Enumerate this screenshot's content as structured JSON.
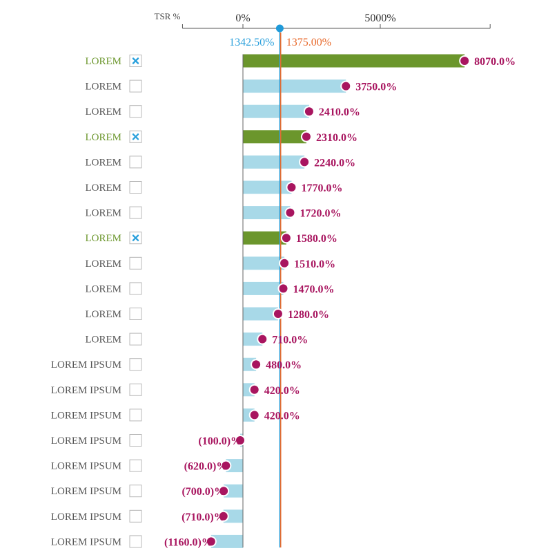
{
  "chart_data": {
    "type": "bar",
    "axis_label": "TSR %",
    "ticks": [
      {
        "value": 0,
        "label": "0%"
      },
      {
        "value": 5000,
        "label": "5000%"
      }
    ],
    "xlim": [
      -2200,
      9000
    ],
    "reference_lines": [
      {
        "value": 1342.5,
        "label": "1342.50%",
        "color": "#2aa0dc"
      },
      {
        "value": 1375.0,
        "label": "1375.00%",
        "color": "#e86a2c"
      }
    ],
    "rows": [
      {
        "label": "LOREM",
        "value": 8070.0,
        "value_label": "8070.0%",
        "checked": true
      },
      {
        "label": "LOREM",
        "value": 3750.0,
        "value_label": "3750.0%",
        "checked": false
      },
      {
        "label": "LOREM",
        "value": 2410.0,
        "value_label": "2410.0%",
        "checked": false
      },
      {
        "label": "LOREM",
        "value": 2310.0,
        "value_label": "2310.0%",
        "checked": true
      },
      {
        "label": "LOREM",
        "value": 2240.0,
        "value_label": "2240.0%",
        "checked": false
      },
      {
        "label": "LOREM",
        "value": 1770.0,
        "value_label": "1770.0%",
        "checked": false
      },
      {
        "label": "LOREM",
        "value": 1720.0,
        "value_label": "1720.0%",
        "checked": false
      },
      {
        "label": "LOREM",
        "value": 1580.0,
        "value_label": "1580.0%",
        "checked": true
      },
      {
        "label": "LOREM",
        "value": 1510.0,
        "value_label": "1510.0%",
        "checked": false
      },
      {
        "label": "LOREM",
        "value": 1470.0,
        "value_label": "1470.0%",
        "checked": false
      },
      {
        "label": "LOREM",
        "value": 1280.0,
        "value_label": "1280.0%",
        "checked": false
      },
      {
        "label": "LOREM",
        "value": 710.0,
        "value_label": "710.0%",
        "checked": false
      },
      {
        "label": "LOREM IPSUM",
        "value": 480.0,
        "value_label": "480.0%",
        "checked": false
      },
      {
        "label": "LOREM IPSUM",
        "value": 420.0,
        "value_label": "420.0%",
        "checked": false
      },
      {
        "label": "LOREM IPSUM",
        "value": 420.0,
        "value_label": "420.0%",
        "checked": false
      },
      {
        "label": "LOREM IPSUM",
        "value": -100.0,
        "value_label": "(100.0)%",
        "checked": false
      },
      {
        "label": "LOREM IPSUM",
        "value": -620.0,
        "value_label": "(620.0)%",
        "checked": false
      },
      {
        "label": "LOREM IPSUM",
        "value": -700.0,
        "value_label": "(700.0)%",
        "checked": false
      },
      {
        "label": "LOREM IPSUM",
        "value": -710.0,
        "value_label": "(710.0)%",
        "checked": false
      },
      {
        "label": "LOREM IPSUM",
        "value": -1160.0,
        "value_label": "(1160.0)%",
        "checked": false
      }
    ],
    "colors": {
      "bar_default": "#a8d9e8",
      "bar_selected": "#6b962c",
      "dot": "#a8155f",
      "value_text": "#a8155f",
      "label_default": "#555555",
      "label_selected": "#6b962c",
      "checkbox_border": "#b8b8b8",
      "checkbox_mark": "#2aa0dc",
      "axis": "#555555",
      "zero_line": "#666666"
    }
  }
}
